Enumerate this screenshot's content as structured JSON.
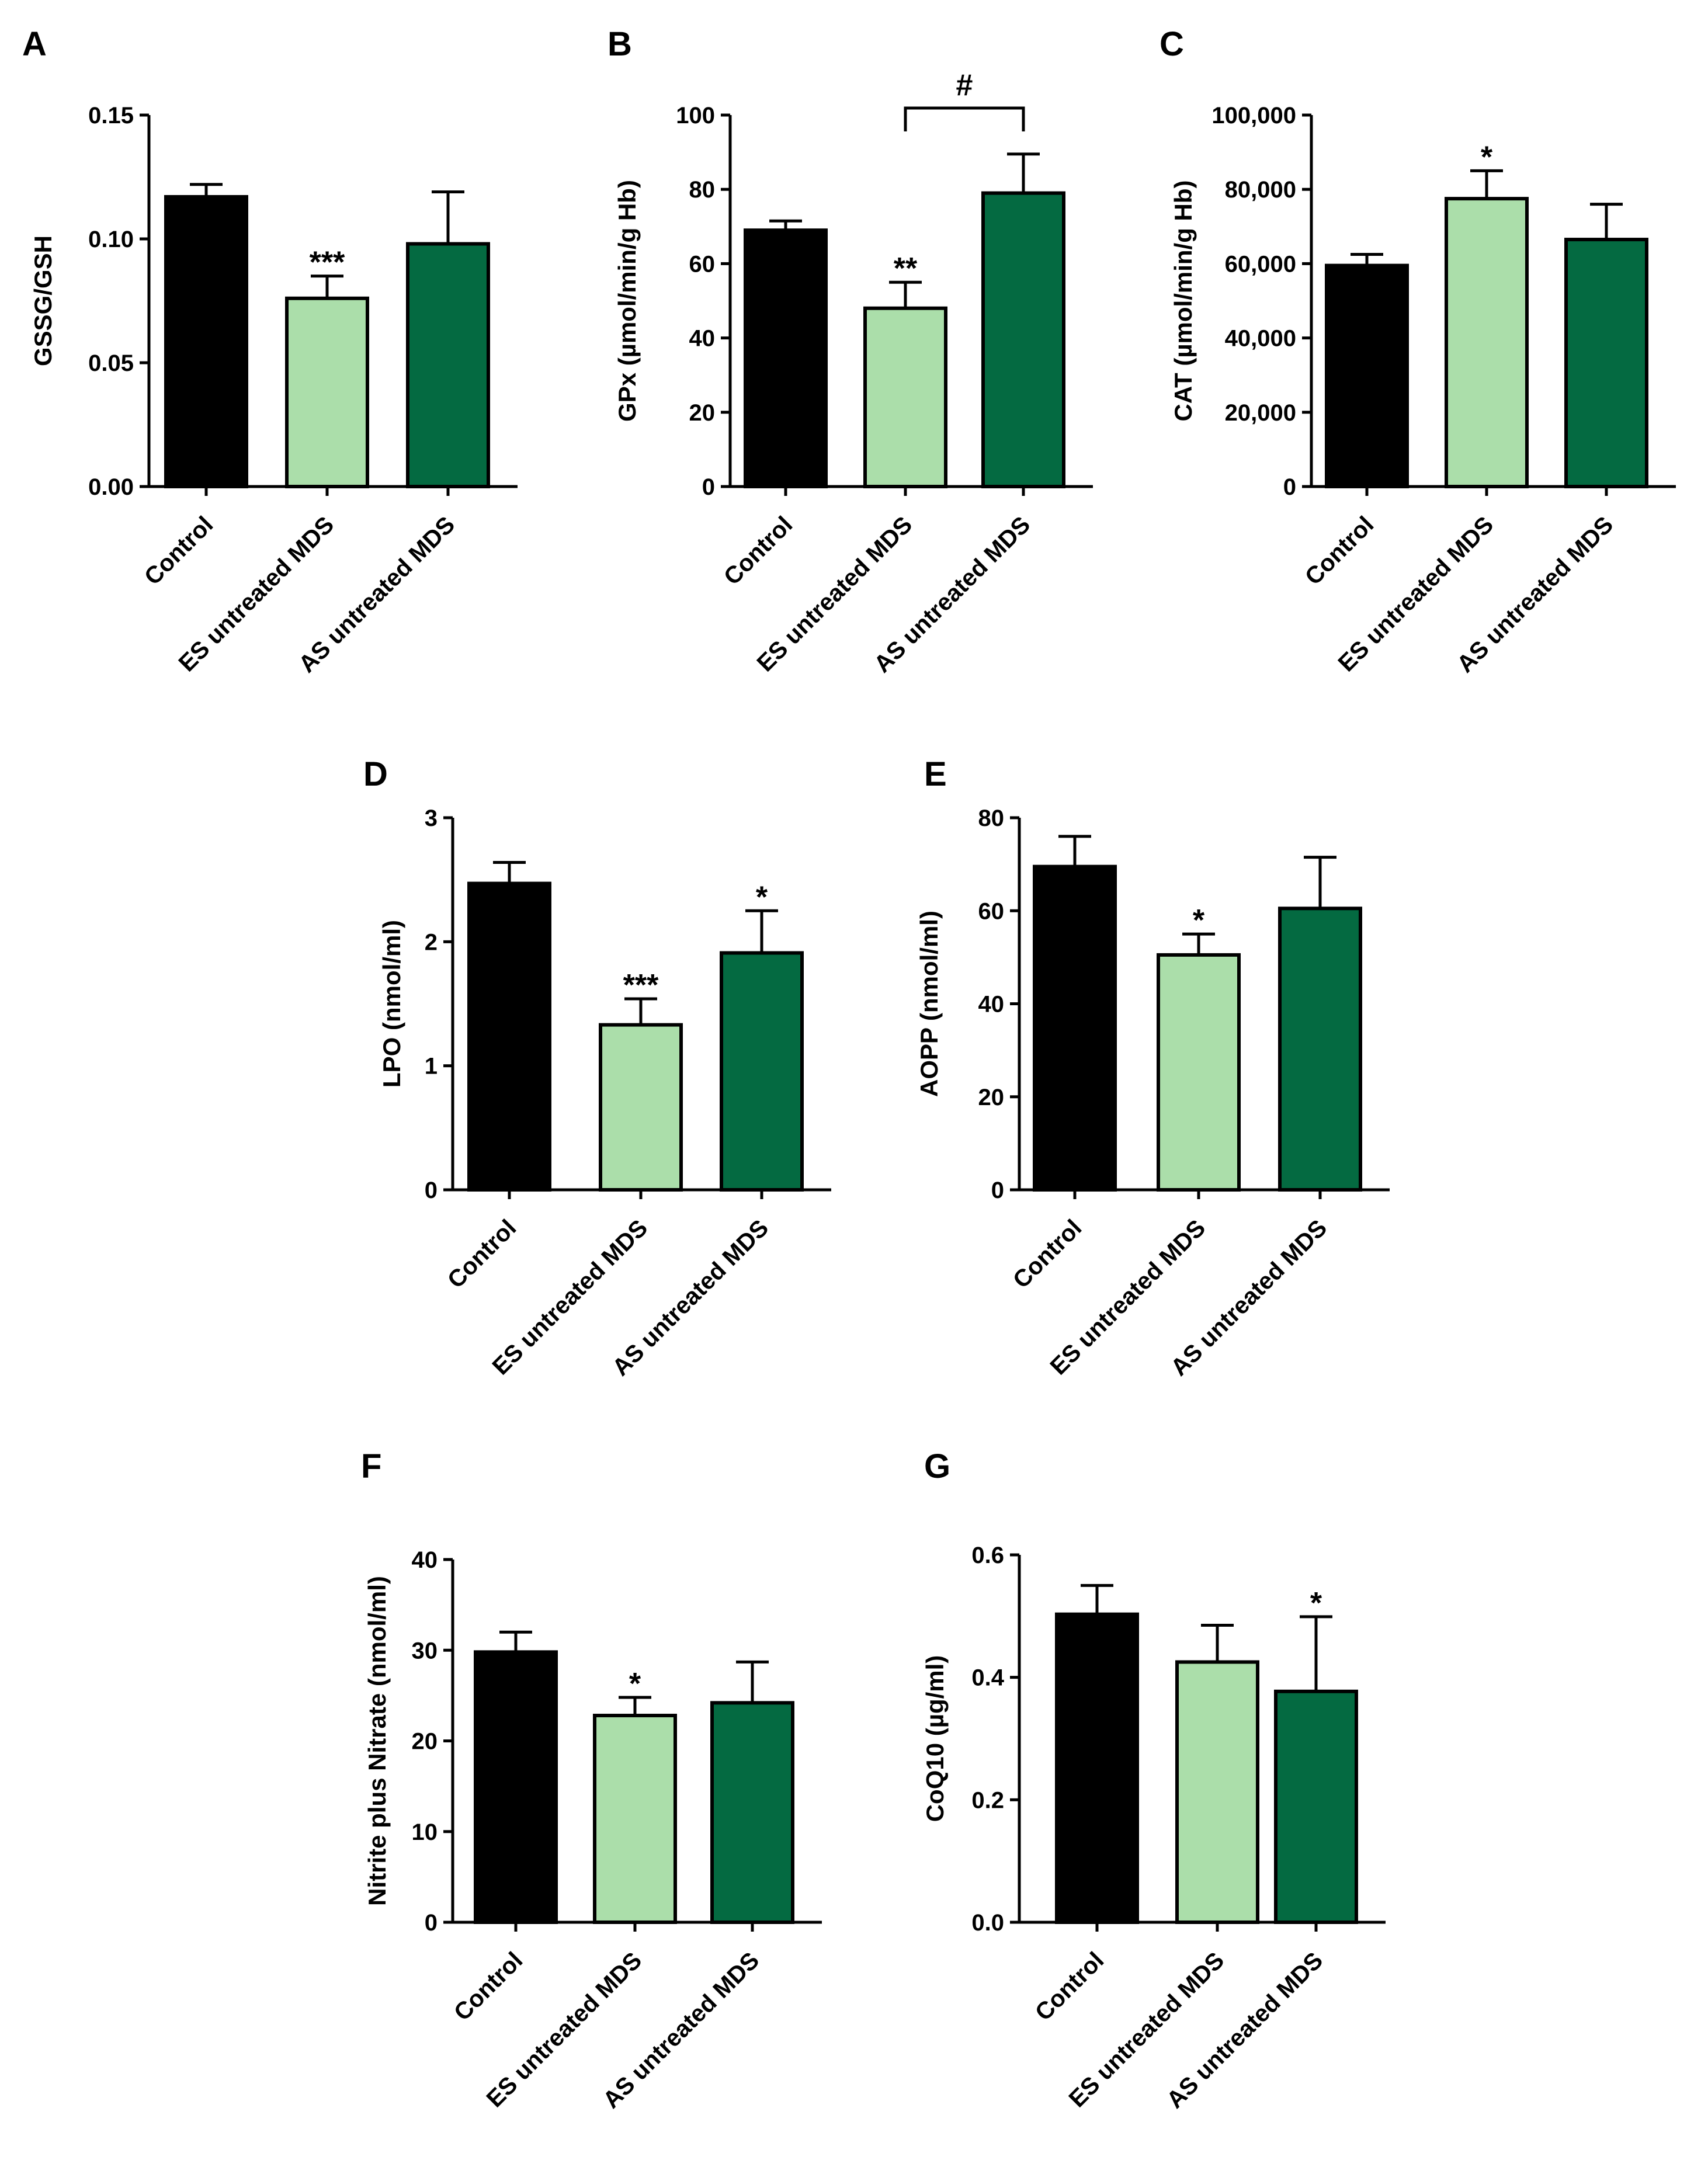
{
  "colors": {
    "control": "#000000",
    "es": "#abdeaa",
    "as": "#046a41"
  },
  "chart_data": [
    {
      "panel": "A",
      "type": "bar",
      "ylabel": "GSSG/GSH",
      "categories": [
        "Control",
        "ES untreated MDS",
        "AS untreated MDS"
      ],
      "values": [
        0.117,
        0.076,
        0.098
      ],
      "errors": [
        0.005,
        0.009,
        0.021
      ],
      "ylim": [
        0,
        0.15
      ],
      "ticks": [
        0,
        0.05,
        0.1,
        0.15
      ],
      "tick_labels": [
        "0.00",
        "0.05",
        "0.10",
        "0.15"
      ],
      "significance": [
        "",
        "***",
        ""
      ]
    },
    {
      "panel": "B",
      "type": "bar",
      "ylabel": "GPx (µmol/min/g Hb)",
      "categories": [
        "Control",
        "ES untreated MDS",
        "AS untreated MDS"
      ],
      "values": [
        69,
        48,
        79
      ],
      "errors": [
        2.5,
        7,
        10.5
      ],
      "ylim": [
        0,
        100
      ],
      "ticks": [
        0,
        20,
        40,
        60,
        80,
        100
      ],
      "tick_labels": [
        "0",
        "20",
        "40",
        "60",
        "80",
        "100"
      ],
      "significance": [
        "",
        "**",
        ""
      ],
      "comparison": {
        "from": 1,
        "to": 2,
        "label": "#"
      }
    },
    {
      "panel": "C",
      "type": "bar",
      "ylabel": "CAT (µmol/min/g Hb)",
      "categories": [
        "Control",
        "ES untreated MDS",
        "AS untreated MDS"
      ],
      "values": [
        59500,
        77500,
        66500
      ],
      "errors": [
        3000,
        7500,
        9500
      ],
      "ylim": [
        0,
        100000
      ],
      "ticks": [
        0,
        20000,
        40000,
        60000,
        80000,
        100000
      ],
      "tick_labels": [
        "0",
        "20,000",
        "40,000",
        "60,000",
        "80,000",
        "100,000"
      ],
      "significance": [
        "",
        "*",
        ""
      ]
    },
    {
      "panel": "D",
      "type": "bar",
      "ylabel": "LPO (nmol/ml)",
      "categories": [
        "Control",
        "ES untreated MDS",
        "AS untreated MDS"
      ],
      "values": [
        2.47,
        1.33,
        1.91
      ],
      "errors": [
        0.17,
        0.21,
        0.34
      ],
      "ylim": [
        0,
        3
      ],
      "ticks": [
        0,
        1,
        2,
        3
      ],
      "tick_labels": [
        "0",
        "1",
        "2",
        "3"
      ],
      "significance": [
        "",
        "***",
        "*"
      ]
    },
    {
      "panel": "E",
      "type": "bar",
      "ylabel": "AOPP (nmol/ml)",
      "categories": [
        "Control",
        "ES untreated MDS",
        "AS untreated MDS"
      ],
      "values": [
        69.5,
        50.5,
        60.5
      ],
      "errors": [
        6.5,
        4.5,
        11
      ],
      "ylim": [
        0,
        80
      ],
      "ticks": [
        0,
        20,
        40,
        60,
        80
      ],
      "tick_labels": [
        "0",
        "20",
        "40",
        "60",
        "80"
      ],
      "significance": [
        "",
        "*",
        ""
      ]
    },
    {
      "panel": "F",
      "type": "bar",
      "ylabel": "Nitrite plus Nitrate (nmol/ml)",
      "categories": [
        "Control",
        "ES untreated MDS",
        "AS untreated MDS"
      ],
      "values": [
        29.8,
        22.8,
        24.2
      ],
      "errors": [
        2.2,
        2,
        4.5
      ],
      "ylim": [
        0,
        40
      ],
      "ticks": [
        0,
        10,
        20,
        30,
        40
      ],
      "tick_labels": [
        "0",
        "10",
        "20",
        "30",
        "40"
      ],
      "significance": [
        "",
        "*",
        ""
      ]
    },
    {
      "panel": "G",
      "type": "bar",
      "ylabel": "CoQ10 (µg/ml)",
      "categories": [
        "Control",
        "ES untreated MDS",
        "AS untreated MDS"
      ],
      "values": [
        0.503,
        0.425,
        0.377
      ],
      "errors": [
        0.047,
        0.06,
        0.122
      ],
      "ylim": [
        0,
        0.6
      ],
      "ticks": [
        0,
        0.2,
        0.4,
        0.6
      ],
      "tick_labels": [
        "0.0",
        "0.2",
        "0.4",
        "0.6"
      ],
      "significance": [
        "",
        "",
        "*"
      ]
    }
  ]
}
